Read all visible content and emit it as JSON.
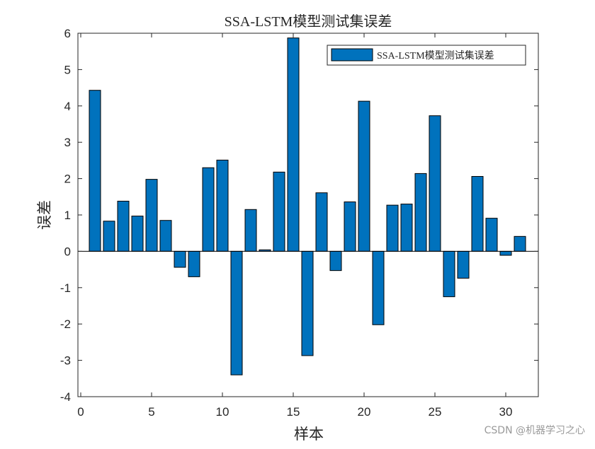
{
  "watermark": "CSDN @机器学习之心",
  "chart_data": {
    "type": "bar",
    "title": "SSA-LSTM模型测试集误差",
    "xlabel": "样本",
    "ylabel": "误差",
    "xlim": [
      -0.2,
      32.3
    ],
    "ylim": [
      -4,
      6
    ],
    "xticks": [
      0,
      5,
      10,
      15,
      20,
      25,
      30
    ],
    "yticks": [
      -4,
      -3,
      -2,
      -1,
      0,
      1,
      2,
      3,
      4,
      5,
      6
    ],
    "grid": false,
    "legend_position": "top-right",
    "bar_color": "#0072BD",
    "x": [
      1,
      2,
      3,
      4,
      5,
      6,
      7,
      8,
      9,
      10,
      11,
      12,
      13,
      14,
      15,
      16,
      17,
      18,
      19,
      20,
      21,
      22,
      23,
      24,
      25,
      26,
      27,
      28,
      29,
      30,
      31
    ],
    "series": [
      {
        "name": "SSA-LSTM模型测试集误差",
        "values": [
          4.43,
          0.83,
          1.38,
          0.97,
          1.98,
          0.85,
          -0.44,
          -0.7,
          2.3,
          2.51,
          -3.4,
          1.15,
          0.04,
          2.18,
          5.87,
          -2.87,
          1.61,
          -0.53,
          1.36,
          4.13,
          -2.02,
          1.27,
          1.3,
          2.14,
          3.73,
          -1.25,
          -0.74,
          2.06,
          0.91,
          -0.11,
          0.41
        ]
      }
    ]
  }
}
